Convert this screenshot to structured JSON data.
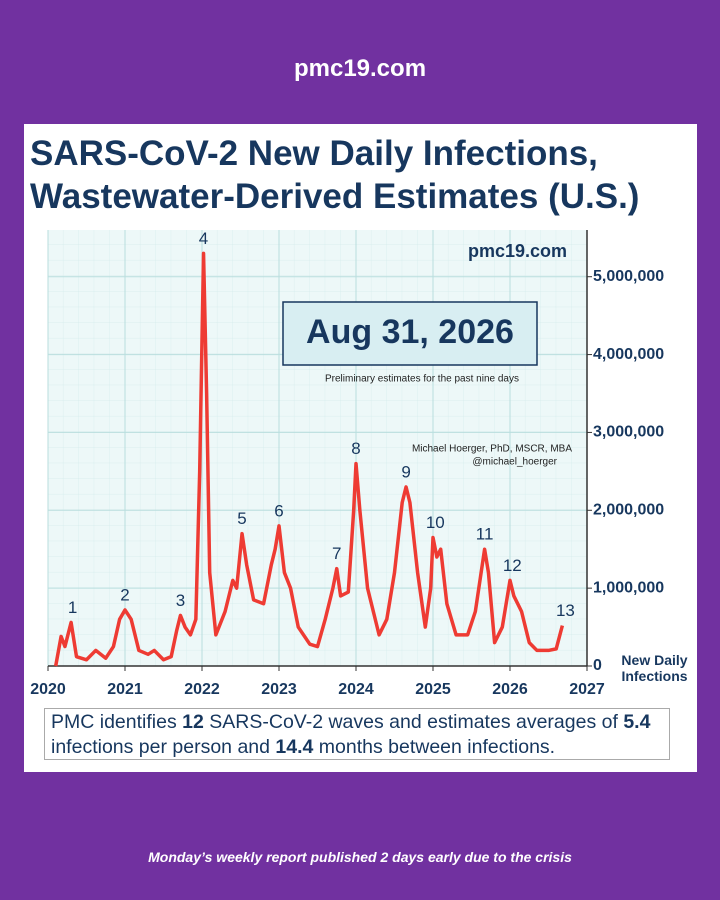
{
  "header": {
    "site": "pmc19.com"
  },
  "chart_data": {
    "type": "line",
    "title": "SARS-CoV-2 New Daily Infections, Wastewater-Derived Estimates (U.S.)",
    "y_label": "New Daily Infections",
    "watermark": "pmc19.com",
    "date": "Aug 31, 2026",
    "date_note": "Preliminary estimates for the past nine days",
    "author": "Michael Hoerger, PhD, MSCR, MBA",
    "handle": "@michael_hoerger",
    "color": "#ee3b33",
    "grid": true,
    "xlim": [
      2020,
      2027
    ],
    "xticks": [
      2020,
      2021,
      2022,
      2023,
      2024,
      2025,
      2026,
      2027
    ],
    "ylim": [
      0,
      5600000
    ],
    "yticks": [
      0,
      {
        "value": 1000000,
        "label": "1,000,000"
      },
      {
        "value": 2000000,
        "label": "2,000,000"
      },
      {
        "value": 3000000,
        "label": "3,000,000"
      },
      {
        "value": 4000000,
        "label": "4,000,000"
      },
      {
        "value": 5000000,
        "label": "5,000,000"
      }
    ],
    "x": [
      2020.1,
      2020.17,
      2020.22,
      2020.3,
      2020.37,
      2020.5,
      2020.62,
      2020.75,
      2020.85,
      2020.93,
      2021.0,
      2021.08,
      2021.18,
      2021.3,
      2021.38,
      2021.5,
      2021.6,
      2021.67,
      2021.72,
      2021.78,
      2021.85,
      2021.92,
      2021.97,
      2022.02,
      2022.06,
      2022.1,
      2022.18,
      2022.3,
      2022.4,
      2022.45,
      2022.52,
      2022.58,
      2022.67,
      2022.8,
      2022.9,
      2022.95,
      2023.0,
      2023.07,
      2023.15,
      2023.25,
      2023.4,
      2023.5,
      2023.6,
      2023.7,
      2023.75,
      2023.8,
      2023.9,
      2023.97,
      2024.0,
      2024.05,
      2024.15,
      2024.3,
      2024.4,
      2024.5,
      2024.6,
      2024.65,
      2024.7,
      2024.8,
      2024.9,
      2024.97,
      2025.0,
      2025.05,
      2025.1,
      2025.18,
      2025.3,
      2025.45,
      2025.55,
      2025.67,
      2025.72,
      2025.8,
      2025.9,
      2026.0,
      2026.05,
      2026.15,
      2026.25,
      2026.35,
      2026.5,
      2026.6,
      2026.68
    ],
    "values": [
      0,
      380000,
      250000,
      560000,
      120000,
      80000,
      200000,
      100000,
      250000,
      600000,
      720000,
      600000,
      200000,
      150000,
      200000,
      80000,
      120000,
      450000,
      650000,
      500000,
      400000,
      600000,
      2500000,
      5300000,
      3500000,
      1200000,
      400000,
      700000,
      1100000,
      1000000,
      1700000,
      1300000,
      850000,
      800000,
      1300000,
      1500000,
      1800000,
      1200000,
      1000000,
      500000,
      280000,
      250000,
      600000,
      1000000,
      1250000,
      900000,
      950000,
      2000000,
      2600000,
      2000000,
      1000000,
      400000,
      600000,
      1200000,
      2100000,
      2300000,
      2100000,
      1200000,
      500000,
      1000000,
      1650000,
      1400000,
      1500000,
      800000,
      400000,
      400000,
      700000,
      1500000,
      1200000,
      300000,
      500000,
      1100000,
      900000,
      700000,
      300000,
      200000,
      200000,
      220000,
      520000
    ],
    "annotations": [
      {
        "text": "1",
        "x": 2020.32,
        "y": 560000
      },
      {
        "text": "2",
        "x": 2021.0,
        "y": 720000
      },
      {
        "text": "3",
        "x": 2021.72,
        "y": 650000
      },
      {
        "text": "4",
        "x": 2022.02,
        "y": 5300000
      },
      {
        "text": "5",
        "x": 2022.52,
        "y": 1700000
      },
      {
        "text": "6",
        "x": 2023.0,
        "y": 1800000
      },
      {
        "text": "7",
        "x": 2023.75,
        "y": 1250000
      },
      {
        "text": "8",
        "x": 2024.0,
        "y": 2600000
      },
      {
        "text": "9",
        "x": 2024.65,
        "y": 2300000
      },
      {
        "text": "10",
        "x": 2025.03,
        "y": 1650000
      },
      {
        "text": "11",
        "x": 2025.67,
        "y": 1500000
      },
      {
        "text": "12",
        "x": 2026.03,
        "y": 1100000
      },
      {
        "text": "13",
        "x": 2026.72,
        "y": 520000
      }
    ]
  },
  "summary": {
    "part1": "PMC identifies",
    "waves": 12,
    "part2": "SARS-CoV-2 waves and estimates averages of",
    "infections_per_person": 5.4,
    "part3": "infections per person and",
    "months_between": 14.4,
    "part4": "months between infections."
  },
  "footer": {
    "note": "Monday’s weekly report published 2 days early due to the crisis"
  }
}
